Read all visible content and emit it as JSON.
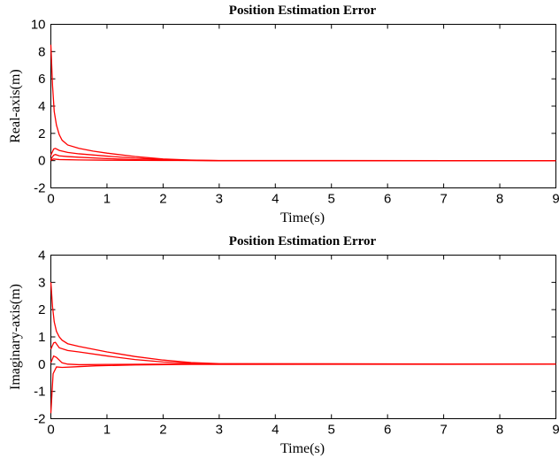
{
  "chart_data": [
    {
      "type": "line",
      "title": "Position Estimation Error",
      "xlabel": "Time(s)",
      "ylabel": "Real-axis(m)",
      "xlim": [
        0,
        9
      ],
      "ylim": [
        -2,
        10
      ],
      "xticks": [
        "0",
        "1",
        "2",
        "3",
        "4",
        "5",
        "6",
        "7",
        "8",
        "9"
      ],
      "yticks": [
        "-2",
        "0",
        "2",
        "4",
        "6",
        "8",
        "10"
      ],
      "grid": false,
      "color": "#ff0000",
      "series": [
        {
          "x": [
            0,
            0.03,
            0.06,
            0.1,
            0.15,
            0.2,
            0.3,
            0.5,
            0.75,
            1,
            1.5,
            2,
            2.5,
            3,
            4,
            5,
            9
          ],
          "values": [
            8.5,
            5.5,
            3.6,
            2.6,
            1.9,
            1.5,
            1.15,
            0.9,
            0.7,
            0.55,
            0.3,
            0.12,
            0.04,
            0,
            0,
            0,
            0
          ]
        },
        {
          "x": [
            0,
            0.05,
            0.08,
            0.15,
            0.3,
            0.5,
            1,
            1.5,
            2,
            2.5,
            3,
            9
          ],
          "values": [
            0.4,
            0.85,
            0.9,
            0.75,
            0.6,
            0.5,
            0.33,
            0.18,
            0.08,
            0.02,
            0,
            0
          ]
        },
        {
          "x": [
            0,
            0.05,
            0.08,
            0.15,
            0.3,
            0.5,
            1,
            1.5,
            2,
            2.5,
            3,
            9
          ],
          "values": [
            0.1,
            0.4,
            0.45,
            0.35,
            0.3,
            0.25,
            0.15,
            0.07,
            0.03,
            0.01,
            0,
            0
          ]
        },
        {
          "x": [
            0,
            0.05,
            0.15,
            0.5,
            1,
            2,
            9
          ],
          "values": [
            0.02,
            0.12,
            0.08,
            0.05,
            0.03,
            0.01,
            0
          ]
        }
      ]
    },
    {
      "type": "line",
      "title": "Position Estimation Error",
      "xlabel": "Time(s)",
      "ylabel": "Imaginary-axis(m)",
      "xlim": [
        0,
        9
      ],
      "ylim": [
        -2,
        4
      ],
      "xticks": [
        "0",
        "1",
        "2",
        "3",
        "4",
        "5",
        "6",
        "7",
        "8",
        "9"
      ],
      "yticks": [
        "-2",
        "-1",
        "0",
        "1",
        "2",
        "3",
        "4"
      ],
      "grid": false,
      "color": "#ff0000",
      "series": [
        {
          "x": [
            0,
            0.03,
            0.06,
            0.1,
            0.15,
            0.2,
            0.3,
            0.5,
            0.75,
            1,
            1.5,
            2,
            2.5,
            3,
            9
          ],
          "values": [
            3.0,
            2.1,
            1.55,
            1.2,
            1.0,
            0.88,
            0.75,
            0.65,
            0.55,
            0.45,
            0.28,
            0.15,
            0.06,
            0.02,
            0
          ]
        },
        {
          "x": [
            0,
            0.05,
            0.08,
            0.15,
            0.3,
            0.5,
            1,
            1.5,
            2,
            2.5,
            3,
            9
          ],
          "values": [
            0.55,
            0.78,
            0.8,
            0.6,
            0.5,
            0.45,
            0.3,
            0.17,
            0.08,
            0.03,
            0,
            0
          ]
        },
        {
          "x": [
            0,
            0.05,
            0.1,
            0.2,
            0.3,
            0.5,
            1,
            2,
            3,
            9
          ],
          "values": [
            0.05,
            0.3,
            0.25,
            0.05,
            0.0,
            -0.02,
            -0.01,
            0,
            0,
            0
          ]
        },
        {
          "x": [
            0,
            0.04,
            0.1,
            0.2,
            0.4,
            0.8,
            1.5,
            2.5,
            9
          ],
          "values": [
            -1.8,
            -0.35,
            -0.1,
            -0.12,
            -0.1,
            -0.06,
            -0.03,
            -0.01,
            0
          ]
        }
      ]
    }
  ]
}
